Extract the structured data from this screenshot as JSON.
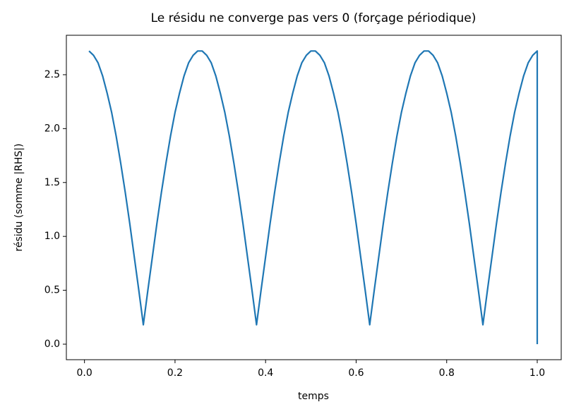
{
  "chart_data": {
    "type": "line",
    "title": "Le résidu ne converge pas vers 0 (forçage périodique)",
    "xlabel": "temps",
    "ylabel": "résidu (somme |RHS|)",
    "x": [
      0.01,
      0.02,
      0.03,
      0.04,
      0.05,
      0.06,
      0.07,
      0.08,
      0.09,
      0.1,
      0.11,
      0.12,
      0.13,
      0.14,
      0.15,
      0.16,
      0.17,
      0.18,
      0.19,
      0.2,
      0.21,
      0.22,
      0.23,
      0.24,
      0.25,
      0.26,
      0.27,
      0.28,
      0.29,
      0.3,
      0.31,
      0.32,
      0.33,
      0.34,
      0.35,
      0.36,
      0.37,
      0.38,
      0.39,
      0.4,
      0.41,
      0.42,
      0.43,
      0.44,
      0.45,
      0.46,
      0.47,
      0.48,
      0.49,
      0.5,
      0.51,
      0.52,
      0.53,
      0.54,
      0.55,
      0.56,
      0.57,
      0.58,
      0.59,
      0.6,
      0.61,
      0.62,
      0.63,
      0.64,
      0.65,
      0.66,
      0.67,
      0.68,
      0.69,
      0.7,
      0.71,
      0.72,
      0.73,
      0.74,
      0.75,
      0.76,
      0.77,
      0.78,
      0.79,
      0.8,
      0.81,
      0.82,
      0.83,
      0.84,
      0.85,
      0.86,
      0.87,
      0.88,
      0.89,
      0.9,
      0.91,
      0.92,
      0.93,
      0.94,
      0.95,
      0.96,
      0.97,
      0.98,
      0.99,
      1.0,
      1.0
    ],
    "series": [
      {
        "color": "#1f77b4",
        "values": [
          2.72,
          2.68,
          2.61,
          2.49,
          2.33,
          2.15,
          1.93,
          1.68,
          1.41,
          1.12,
          0.81,
          0.5,
          0.18,
          0.5,
          0.81,
          1.12,
          1.41,
          1.68,
          1.93,
          2.15,
          2.33,
          2.49,
          2.61,
          2.68,
          2.72,
          2.72,
          2.68,
          2.61,
          2.49,
          2.33,
          2.15,
          1.93,
          1.68,
          1.41,
          1.12,
          0.81,
          0.5,
          0.18,
          0.5,
          0.81,
          1.12,
          1.41,
          1.68,
          1.93,
          2.15,
          2.33,
          2.49,
          2.61,
          2.68,
          2.72,
          2.72,
          2.68,
          2.61,
          2.49,
          2.33,
          2.15,
          1.93,
          1.68,
          1.41,
          1.12,
          0.81,
          0.5,
          0.18,
          0.5,
          0.81,
          1.12,
          1.41,
          1.68,
          1.93,
          2.15,
          2.33,
          2.49,
          2.61,
          2.68,
          2.72,
          2.72,
          2.68,
          2.61,
          2.49,
          2.33,
          2.15,
          1.93,
          1.68,
          1.41,
          1.12,
          0.81,
          0.5,
          0.18,
          0.5,
          0.81,
          1.12,
          1.41,
          1.68,
          1.93,
          2.15,
          2.33,
          2.49,
          2.61,
          2.68,
          2.72,
          0
        ]
      }
    ],
    "xlim": [
      -0.04,
      1.053
    ],
    "ylim": [
      -0.144,
      2.866
    ],
    "xticks": [
      {
        "value": 0,
        "label": "0.0"
      },
      {
        "value": 0.2,
        "label": "0.2"
      },
      {
        "value": 0.4,
        "label": "0.4"
      },
      {
        "value": 0.6,
        "label": "0.6"
      },
      {
        "value": 0.8,
        "label": "0.8"
      },
      {
        "value": 1,
        "label": "1.0"
      }
    ],
    "yticks": [
      {
        "value": 0,
        "label": "0.0"
      },
      {
        "value": 0.5,
        "label": "0.5"
      },
      {
        "value": 1,
        "label": "1.0"
      },
      {
        "value": 1.5,
        "label": "1.5"
      },
      {
        "value": 2,
        "label": "2.0"
      },
      {
        "value": 2.5,
        "label": "2.5"
      }
    ],
    "grid": false
  }
}
